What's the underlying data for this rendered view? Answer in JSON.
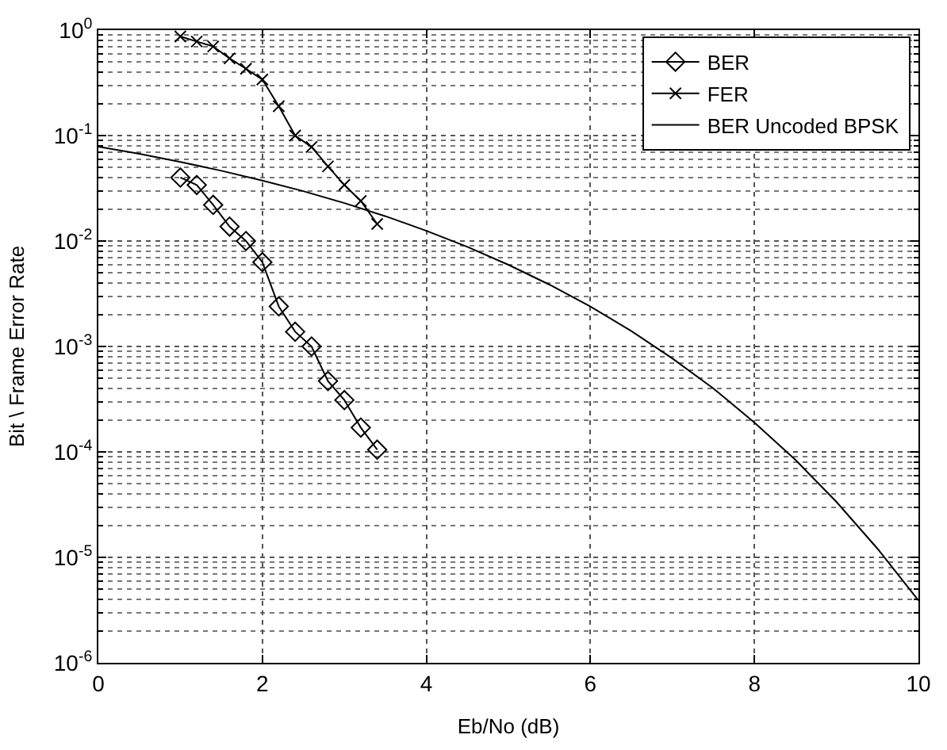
{
  "chart_data": {
    "type": "line",
    "xlabel": "Eb/No (dB)",
    "ylabel": "Bit \\ Frame Error Rate",
    "log": "y",
    "grid": true,
    "legend": "top right",
    "xlim": [
      0,
      10
    ],
    "xticks": [
      0,
      2,
      4,
      6,
      8,
      10
    ],
    "ylim": [
      1e-06,
      1
    ],
    "yticks": [
      {
        "value": 1e-06,
        "label": "10$^{-6}$"
      },
      {
        "value": 1e-05,
        "label": "10$^{-5}$"
      },
      {
        "value": 0.0001,
        "label": "10$^{-4}$"
      },
      {
        "value": 0.001,
        "label": "10$^{-3}$"
      },
      {
        "value": 0.01,
        "label": "10$^{-2}$"
      },
      {
        "value": 0.1,
        "label": "10$^{-1}$"
      },
      {
        "value": 1,
        "label": "10$^{0}$"
      }
    ],
    "series": [
      {
        "name": "BER",
        "color": "#000000",
        "marker": "diamond",
        "x": [
          1.0,
          1.2,
          1.4,
          1.6,
          1.8,
          2.0,
          2.2,
          2.4,
          2.6,
          2.8,
          3.0,
          3.2,
          3.4
        ],
        "values": [
          0.04,
          0.034,
          0.022,
          0.0137,
          0.01,
          0.0063,
          0.0024,
          0.00138,
          0.001,
          0.00047,
          0.00031,
          0.00017,
          0.000105
        ]
      },
      {
        "name": "FER",
        "color": "#000000",
        "marker": "cross",
        "x": [
          1.0,
          1.2,
          1.4,
          1.6,
          1.8,
          2.0,
          2.2,
          2.4,
          2.6,
          2.8,
          3.0,
          3.2,
          3.4
        ],
        "values": [
          0.87,
          0.78,
          0.7,
          0.54,
          0.43,
          0.34,
          0.19,
          0.1,
          0.078,
          0.051,
          0.034,
          0.024,
          0.0145
        ]
      },
      {
        "name": "BER Uncoded BPSK",
        "color": "#000000",
        "marker": "none",
        "x": [
          0,
          0.5,
          1,
          1.5,
          2,
          2.5,
          3,
          3.5,
          4,
          4.5,
          5,
          5.5,
          6,
          6.5,
          7,
          7.5,
          8,
          8.5,
          9,
          9.5,
          10
        ],
        "values": [
          0.0786,
          0.0671,
          0.0563,
          0.0464,
          0.0375,
          0.0297,
          0.0229,
          0.0172,
          0.0125,
          0.0088,
          0.00595,
          0.00386,
          0.00239,
          0.0014,
          0.00077,
          0.0004,
          0.00019,
          8.4e-05,
          3.36e-05,
          1.21e-05,
          3.9e-06
        ]
      }
    ]
  }
}
